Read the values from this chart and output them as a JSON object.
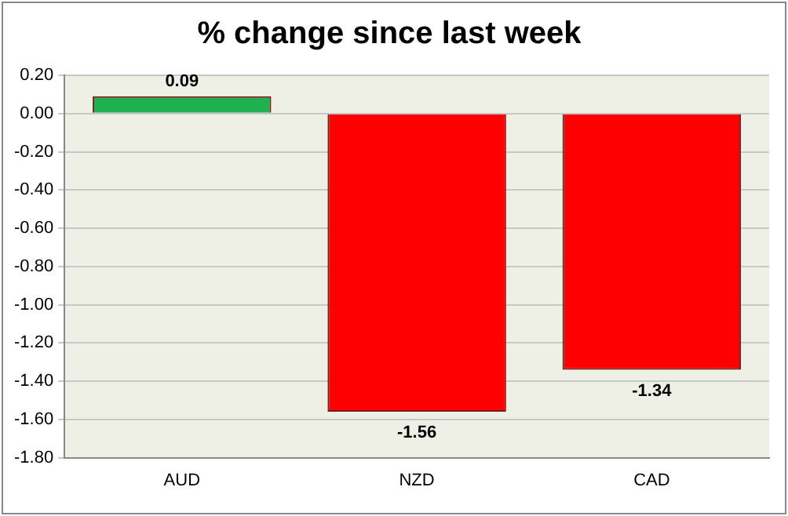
{
  "chart_data": {
    "type": "bar",
    "title": "% change since last week",
    "categories": [
      "AUD",
      "NZD",
      "CAD"
    ],
    "values": [
      0.09,
      -1.56,
      -1.34
    ],
    "colors": [
      "#1fb04f",
      "#ff0000",
      "#ff0000"
    ],
    "ylim": [
      -1.8,
      0.2
    ],
    "yticks": [
      {
        "value": -1.8,
        "label": "-1.80"
      },
      {
        "value": -1.6,
        "label": "-1.60"
      },
      {
        "value": -1.4,
        "label": "-1.40"
      },
      {
        "value": -1.2,
        "label": "-1.20"
      },
      {
        "value": -1,
        "label": "-1.00"
      },
      {
        "value": -0.8,
        "label": "-0.80"
      },
      {
        "value": -0.6,
        "label": "-0.60"
      },
      {
        "value": -0.4,
        "label": "-0.40"
      },
      {
        "value": -0.2,
        "label": "-0.20"
      },
      {
        "value": 0,
        "label": "0.00"
      },
      {
        "value": 0.2,
        "label": "0.20"
      }
    ],
    "grid": "y",
    "data_labels": true,
    "legend": false
  }
}
